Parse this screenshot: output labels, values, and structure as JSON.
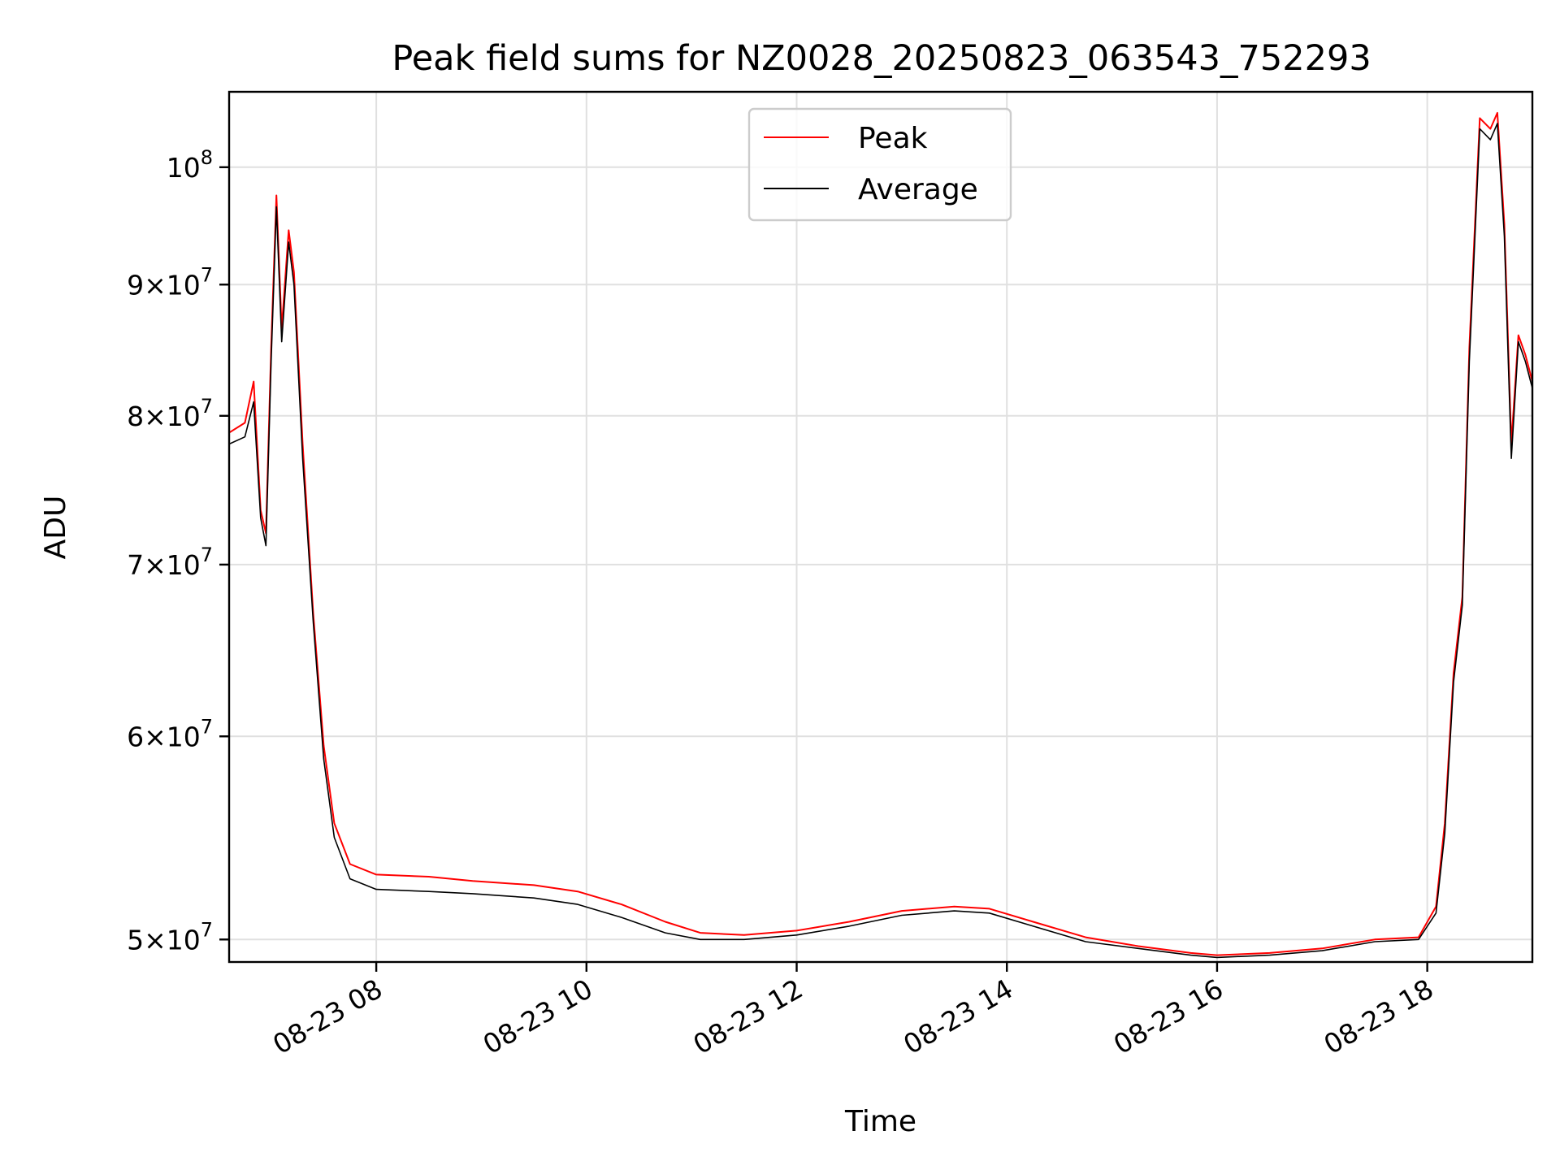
{
  "chart_data": {
    "type": "line",
    "title": "Peak field sums for NZ0028_20250823_063543_752293",
    "xlabel": "Time",
    "ylabel": "ADU",
    "x_scale": "time",
    "y_scale": "log",
    "xlim": [
      "2025-08-23 06:36",
      "2025-08-23 19:00"
    ],
    "ylim": [
      49000000,
      107000000
    ],
    "grid": true,
    "legend_position": "top-center",
    "x_ticks": [
      {
        "value": "2025-08-23 08:00",
        "label": "08-23 08"
      },
      {
        "value": "2025-08-23 10:00",
        "label": "08-23 10"
      },
      {
        "value": "2025-08-23 12:00",
        "label": "08-23 12"
      },
      {
        "value": "2025-08-23 14:00",
        "label": "08-23 14"
      },
      {
        "value": "2025-08-23 16:00",
        "label": "08-23 16"
      },
      {
        "value": "2025-08-23 18:00",
        "label": "08-23 18"
      }
    ],
    "y_ticks": [
      {
        "value": 50000000,
        "mantissa": "5",
        "exponent": "7"
      },
      {
        "value": 60000000,
        "mantissa": "6",
        "exponent": "7"
      },
      {
        "value": 70000000,
        "mantissa": "7",
        "exponent": "7"
      },
      {
        "value": 80000000,
        "mantissa": "8",
        "exponent": "7"
      },
      {
        "value": 90000000,
        "mantissa": "9",
        "exponent": "7"
      },
      {
        "value": 100000000,
        "mantissa": "",
        "exponent": "8"
      }
    ],
    "series": [
      {
        "name": "Peak",
        "color": "#ff0000",
        "points": [
          [
            "2025-08-23 06:36",
            78800000
          ],
          [
            "2025-08-23 06:45",
            79500000
          ],
          [
            "2025-08-23 06:50",
            82500000
          ],
          [
            "2025-08-23 06:54",
            73500000
          ],
          [
            "2025-08-23 06:57",
            72000000
          ],
          [
            "2025-08-23 07:00",
            85000000
          ],
          [
            "2025-08-23 07:03",
            97500000
          ],
          [
            "2025-08-23 07:06",
            86500000
          ],
          [
            "2025-08-23 07:10",
            94500000
          ],
          [
            "2025-08-23 07:13",
            91000000
          ],
          [
            "2025-08-23 07:18",
            78000000
          ],
          [
            "2025-08-23 07:24",
            67000000
          ],
          [
            "2025-08-23 07:30",
            59500000
          ],
          [
            "2025-08-23 07:36",
            55500000
          ],
          [
            "2025-08-23 07:45",
            53500000
          ],
          [
            "2025-08-23 08:00",
            53000000
          ],
          [
            "2025-08-23 08:30",
            52900000
          ],
          [
            "2025-08-23 08:55",
            52700000
          ],
          [
            "2025-08-23 09:30",
            52500000
          ],
          [
            "2025-08-23 09:55",
            52200000
          ],
          [
            "2025-08-23 10:20",
            51600000
          ],
          [
            "2025-08-23 10:45",
            50800000
          ],
          [
            "2025-08-23 11:05",
            50300000
          ],
          [
            "2025-08-23 11:30",
            50200000
          ],
          [
            "2025-08-23 12:00",
            50400000
          ],
          [
            "2025-08-23 12:30",
            50800000
          ],
          [
            "2025-08-23 13:00",
            51300000
          ],
          [
            "2025-08-23 13:30",
            51500000
          ],
          [
            "2025-08-23 13:50",
            51400000
          ],
          [
            "2025-08-23 14:15",
            50800000
          ],
          [
            "2025-08-23 14:45",
            50100000
          ],
          [
            "2025-08-23 15:15",
            49700000
          ],
          [
            "2025-08-23 15:45",
            49400000
          ],
          [
            "2025-08-23 16:00",
            49300000
          ],
          [
            "2025-08-23 16:30",
            49400000
          ],
          [
            "2025-08-23 17:00",
            49600000
          ],
          [
            "2025-08-23 17:30",
            50000000
          ],
          [
            "2025-08-23 17:55",
            50100000
          ],
          [
            "2025-08-23 18:05",
            51500000
          ],
          [
            "2025-08-23 18:10",
            55500000
          ],
          [
            "2025-08-23 18:15",
            63500000
          ],
          [
            "2025-08-23 18:20",
            68000000
          ],
          [
            "2025-08-23 18:24",
            85000000
          ],
          [
            "2025-08-23 18:30",
            104500000
          ],
          [
            "2025-08-23 18:36",
            103500000
          ],
          [
            "2025-08-23 18:40",
            105000000
          ],
          [
            "2025-08-23 18:44",
            95000000
          ],
          [
            "2025-08-23 18:48",
            78000000
          ],
          [
            "2025-08-23 18:52",
            86000000
          ],
          [
            "2025-08-23 18:56",
            84500000
          ],
          [
            "2025-08-23 19:00",
            82500000
          ]
        ]
      },
      {
        "name": "Average",
        "color": "#000000",
        "points": [
          [
            "2025-08-23 06:36",
            78000000
          ],
          [
            "2025-08-23 06:45",
            78500000
          ],
          [
            "2025-08-23 06:50",
            81000000
          ],
          [
            "2025-08-23 06:54",
            73000000
          ],
          [
            "2025-08-23 06:57",
            71200000
          ],
          [
            "2025-08-23 07:00",
            84000000
          ],
          [
            "2025-08-23 07:03",
            96500000
          ],
          [
            "2025-08-23 07:06",
            85500000
          ],
          [
            "2025-08-23 07:10",
            93500000
          ],
          [
            "2025-08-23 07:13",
            90000000
          ],
          [
            "2025-08-23 07:18",
            77000000
          ],
          [
            "2025-08-23 07:24",
            66500000
          ],
          [
            "2025-08-23 07:30",
            58800000
          ],
          [
            "2025-08-23 07:36",
            54800000
          ],
          [
            "2025-08-23 07:45",
            52800000
          ],
          [
            "2025-08-23 08:00",
            52300000
          ],
          [
            "2025-08-23 08:30",
            52200000
          ],
          [
            "2025-08-23 08:55",
            52100000
          ],
          [
            "2025-08-23 09:30",
            51900000
          ],
          [
            "2025-08-23 09:55",
            51600000
          ],
          [
            "2025-08-23 10:20",
            51000000
          ],
          [
            "2025-08-23 10:45",
            50300000
          ],
          [
            "2025-08-23 11:05",
            50000000
          ],
          [
            "2025-08-23 11:30",
            50000000
          ],
          [
            "2025-08-23 12:00",
            50200000
          ],
          [
            "2025-08-23 12:30",
            50600000
          ],
          [
            "2025-08-23 13:00",
            51100000
          ],
          [
            "2025-08-23 13:30",
            51300000
          ],
          [
            "2025-08-23 13:50",
            51200000
          ],
          [
            "2025-08-23 14:15",
            50600000
          ],
          [
            "2025-08-23 14:45",
            49900000
          ],
          [
            "2025-08-23 15:15",
            49600000
          ],
          [
            "2025-08-23 15:45",
            49300000
          ],
          [
            "2025-08-23 16:00",
            49200000
          ],
          [
            "2025-08-23 16:30",
            49300000
          ],
          [
            "2025-08-23 17:00",
            49500000
          ],
          [
            "2025-08-23 17:30",
            49900000
          ],
          [
            "2025-08-23 17:55",
            50000000
          ],
          [
            "2025-08-23 18:05",
            51200000
          ],
          [
            "2025-08-23 18:10",
            55000000
          ],
          [
            "2025-08-23 18:15",
            63000000
          ],
          [
            "2025-08-23 18:20",
            67500000
          ],
          [
            "2025-08-23 18:24",
            84000000
          ],
          [
            "2025-08-23 18:30",
            103500000
          ],
          [
            "2025-08-23 18:36",
            102500000
          ],
          [
            "2025-08-23 18:40",
            104000000
          ],
          [
            "2025-08-23 18:44",
            94000000
          ],
          [
            "2025-08-23 18:48",
            77000000
          ],
          [
            "2025-08-23 18:52",
            85500000
          ],
          [
            "2025-08-23 18:56",
            84000000
          ],
          [
            "2025-08-23 19:00",
            82000000
          ]
        ]
      }
    ]
  }
}
